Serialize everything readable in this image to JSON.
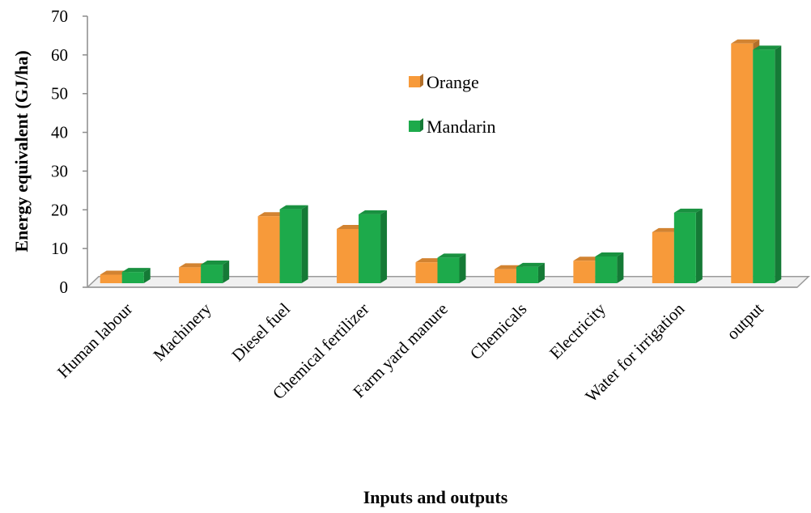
{
  "chart_data": {
    "type": "bar",
    "categories": [
      "Human labour",
      "Machinery",
      "Diesel fuel",
      "Chemical fertilizer",
      "Farm yard manure",
      "Chemicals",
      "Electricity",
      "Water for irrigation",
      "output"
    ],
    "series": [
      {
        "name": "Orange",
        "color": "#F79A3A",
        "values": [
          2.2,
          4.1,
          17.3,
          14.0,
          5.4,
          3.6,
          5.8,
          13.2,
          61.9
        ]
      },
      {
        "name": "Mandarin",
        "color": "#1DAA4B",
        "values": [
          2.9,
          4.8,
          19.1,
          17.8,
          6.6,
          4.2,
          6.9,
          18.2,
          60.3
        ]
      }
    ],
    "yticks": [
      0,
      10,
      20,
      30,
      40,
      50,
      60,
      70
    ],
    "ylim": [
      0,
      70
    ],
    "xlabel": "Inputs and outputs",
    "ylabel": "Energy equivalent (GJ/ha)",
    "legend_position": "upper-middle",
    "grid": false,
    "style": "3d-clustered"
  }
}
